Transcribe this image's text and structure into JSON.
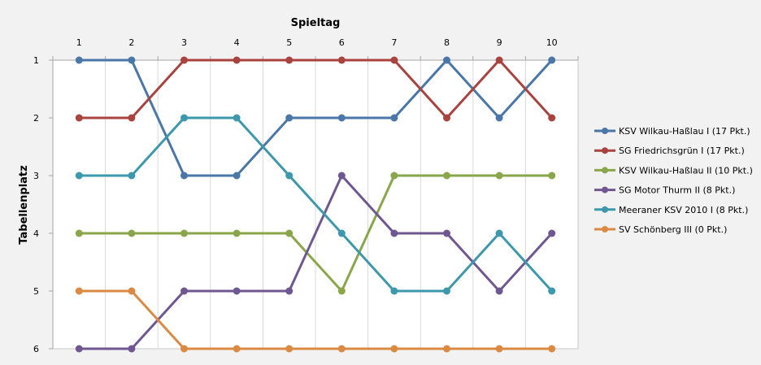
{
  "chart_data": {
    "type": "line",
    "title": "",
    "xlabel": "Spieltag",
    "ylabel": "Tabellenplatz",
    "x": [
      1,
      2,
      3,
      4,
      5,
      6,
      7,
      8,
      9,
      10
    ],
    "x_tick_labels": [
      "1",
      "2",
      "3",
      "4",
      "5",
      "6",
      "7",
      "8",
      "9",
      "10"
    ],
    "xaxis_position": "top",
    "y_tick_labels": [
      "1",
      "2",
      "3",
      "4",
      "5",
      "6"
    ],
    "ylim": [
      1,
      6
    ],
    "y_inverted": true,
    "grid": "vertical",
    "legend_position": "right",
    "series": [
      {
        "name": "KSV Wilkau-Haßlau I (17 Pkt.)",
        "color": "#4a76a8",
        "values": [
          1,
          1,
          3,
          3,
          2,
          2,
          2,
          1,
          2,
          1
        ]
      },
      {
        "name": "SG Friedrichsgrün I (17 Pkt.)",
        "color": "#a9433f",
        "values": [
          2,
          2,
          1,
          1,
          1,
          1,
          1,
          2,
          1,
          2
        ]
      },
      {
        "name": "KSV Wilkau-Haßlau II (10 Pkt.)",
        "color": "#8aa64a",
        "values": [
          4,
          4,
          4,
          4,
          4,
          5,
          3,
          3,
          3,
          3
        ]
      },
      {
        "name": "SG Motor Thurm II (8 Pkt.)",
        "color": "#6f5791",
        "values": [
          6,
          6,
          5,
          5,
          5,
          3,
          4,
          4,
          5,
          4
        ]
      },
      {
        "name": "Meeraner KSV 2010 I (8 Pkt.)",
        "color": "#3d98ac",
        "values": [
          3,
          3,
          2,
          2,
          3,
          4,
          5,
          5,
          4,
          5
        ]
      },
      {
        "name": "SV Schönberg III (0 Pkt.)",
        "color": "#db8a43",
        "values": [
          5,
          5,
          6,
          6,
          6,
          6,
          6,
          6,
          6,
          6
        ]
      }
    ]
  }
}
